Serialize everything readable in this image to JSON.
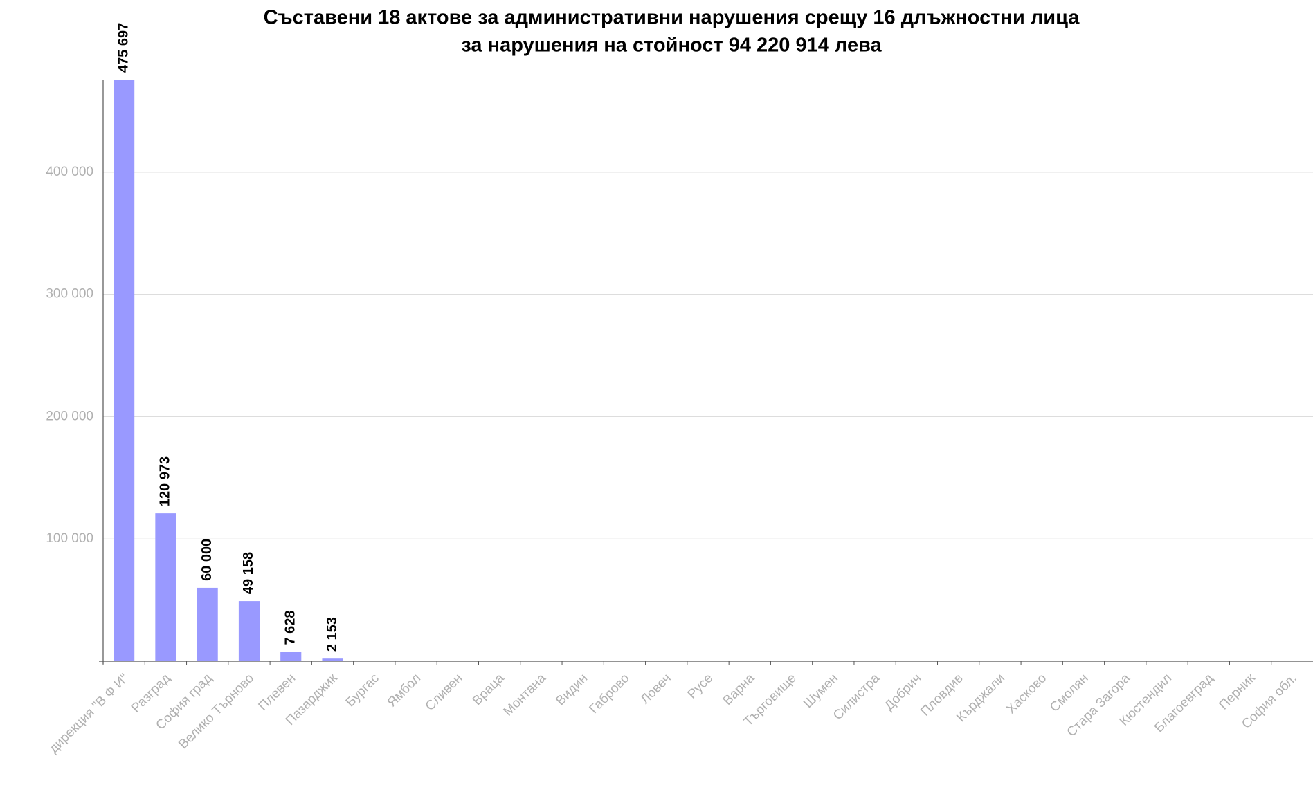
{
  "chart_data": {
    "type": "bar",
    "title": [
      "Съставени 18 актове за административни нарушения срещу 16 длъжностни лица",
      "за нарушения на стойност 94 220 914 лева"
    ],
    "categories": [
      "дирекция \"В Ф И\"",
      "Разград",
      "София град",
      "Велико Търново",
      "Плевен",
      "Пазарджик",
      "Бургас",
      "Ямбол",
      "Сливен",
      "Враца",
      "Монтана",
      "Видин",
      "Габрово",
      "Ловеч",
      "Русе",
      "Варна",
      "Търговище",
      "Шумен",
      "Силистра",
      "Добрич",
      "Пловдив",
      "Кърджали",
      "Хасково",
      "Смолян",
      "Стара Загора",
      "Кюстендил",
      "Благоевград",
      "Перник",
      "София обл."
    ],
    "values": [
      475697,
      120973,
      60000,
      49158,
      7628,
      2153,
      0,
      0,
      0,
      0,
      0,
      0,
      0,
      0,
      0,
      0,
      0,
      0,
      0,
      0,
      0,
      0,
      0,
      0,
      0,
      0,
      0,
      0,
      0
    ],
    "value_labels": [
      "475 697",
      "120 973",
      "60 000",
      "49 158",
      "7 628",
      "2 153",
      null,
      null,
      null,
      null,
      null,
      null,
      null,
      null,
      null,
      null,
      null,
      null,
      null,
      null,
      null,
      null,
      null,
      null,
      null,
      null,
      null,
      null,
      null
    ],
    "color": "#9999ff",
    "ylim": [
      0,
      475697
    ],
    "yticks": [
      {
        "value": 100000,
        "label": "100 000"
      },
      {
        "value": 200000,
        "label": "200 000"
      },
      {
        "value": 300000,
        "label": "300 000"
      },
      {
        "value": 400000,
        "label": "400 000"
      }
    ],
    "grid": true
  }
}
